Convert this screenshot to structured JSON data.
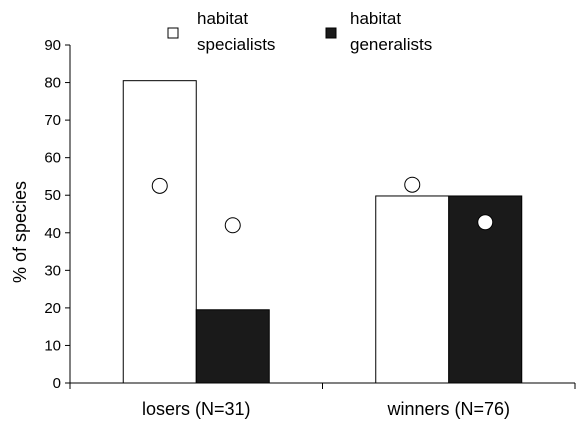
{
  "chart_data": {
    "type": "bar",
    "categories": [
      "losers (N=31)",
      "winners (N=76)"
    ],
    "series": [
      {
        "name": "habitat specialists",
        "values": [
          80.5,
          49.8
        ],
        "color": "#ffffff"
      },
      {
        "name": "habitat generalists",
        "values": [
          19.5,
          49.8
        ],
        "color": "#1a1a1a"
      }
    ],
    "markers": [
      {
        "series": 0,
        "values": [
          52.5,
          52.8
        ],
        "fill": "#ffffff"
      },
      {
        "series": 1,
        "values": [
          42.0,
          42.8
        ],
        "fill": "#ffffff"
      }
    ],
    "ylabel": "% of species",
    "xlabel": "",
    "ylim": [
      0,
      90
    ],
    "yticks": [
      0,
      10,
      20,
      30,
      40,
      50,
      60,
      70,
      80,
      90
    ],
    "grid": false,
    "legend_position": "top",
    "legend_labels": [
      [
        "habitat",
        "specialists"
      ],
      [
        "habitat",
        "generalists"
      ]
    ]
  }
}
